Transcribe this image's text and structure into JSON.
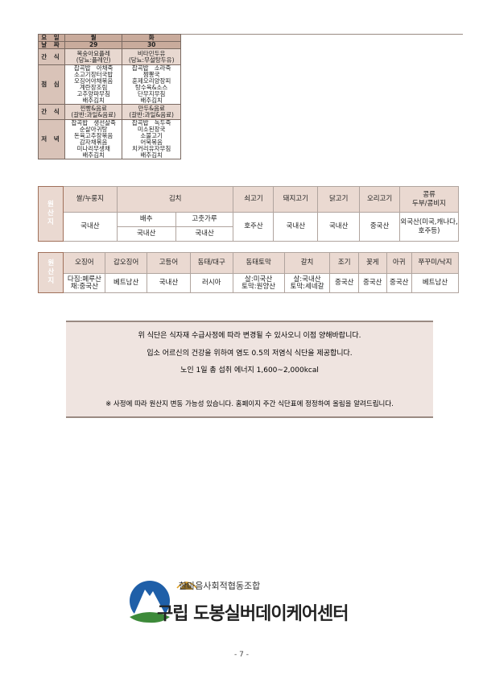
{
  "menu": {
    "rows": {
      "day": "요 일",
      "date": "날 짜",
      "snack1": "간 식",
      "lunch": "점 심",
      "snack2": "간 식",
      "dinner": "저 녁"
    },
    "days": [
      "월",
      "화"
    ],
    "dates": [
      "29",
      "30"
    ],
    "snack1": [
      [
        "복숭아요플레",
        "(당뇨:플레인)"
      ],
      [
        "비타민두유",
        "(당뇨:무설탕두유)"
      ]
    ],
    "lunch": [
      [
        "잡곡밥   아채죽",
        "소고기장터국밥",
        "오징어야채볶음",
        "계란장조림",
        "고추양파무침",
        "배추김치"
      ],
      [
        "잡곡밥   소라죽",
        "짬뽕국",
        "훈제오리양장피",
        "탕수육&소스",
        "단무지무침",
        "배추김치"
      ]
    ],
    "snack2": [
      [
        "찐빵&음료",
        "(갈반:과일&음료)"
      ],
      [
        "만두&음료",
        "(갈반:과일&음료)"
      ]
    ],
    "dinner": [
      [
        "잡곡밥   생선살죽",
        "순살아귀탕",
        "돈육고추장볶음",
        "감자채볶음",
        "미나리무생채",
        "배추김치"
      ],
      [
        "잡곡밥   녹두죽",
        "미소된장국",
        "소불고기",
        "어묵볶음",
        "치커리유자무침",
        "배추김치"
      ]
    ]
  },
  "origin1": {
    "side": "원\n산\n지",
    "headers": [
      "쌀/누룽지",
      "김치",
      "쇠고기",
      "돼지고기",
      "닭고기",
      "오리고기",
      "콩류\n두부/콩비지"
    ],
    "rice": "국내산",
    "kimchi_sub": [
      "배추",
      "고춧가루"
    ],
    "kimchi_vals": [
      "국내산",
      "국내산"
    ],
    "values": [
      "호주산",
      "국내산",
      "국내산",
      "중국산",
      "외국산(미국,캐나다,호주등)"
    ]
  },
  "origin2": {
    "side": "원\n산\n지",
    "headers": [
      "오징어",
      "갑오징어",
      "고등어",
      "동태/대구",
      "동태토막",
      "갈치",
      "조기",
      "꽃게",
      "아귀",
      "쭈꾸미/낙지"
    ],
    "values": [
      "다짐:페루산\n채:중국산",
      "베트남산",
      "국내산",
      "러시아",
      "살:미국산\n토막:원양산",
      "살:국내산\n토막:세네갈",
      "중국산",
      "중국산",
      "중국산",
      "베트남산"
    ]
  },
  "notice": {
    "lines": [
      "위 식단은 식자재 수급사정에 따라 변경될 수 있사오니 이점 양해바랍니다.",
      "입소 어르신의 건강을 위하여 염도 0.5의 저염식 식단을 제공합니다.",
      "노인 1일 총 섭취 에너지 1,600~2,000kcal"
    ],
    "footnote": "※ 사정에 따라 원산지 변동 가능성 있습니다. 홈페이지 주간 식단표에 정정하여 올림을 알려드립니다."
  },
  "logo": {
    "org": "한마음사회적협동조합",
    "center": "구립 도봉실버데이케어센터",
    "colors": {
      "blue": "#1f5fa8",
      "green": "#3d8a3a"
    }
  },
  "page_number": "- 7 -"
}
